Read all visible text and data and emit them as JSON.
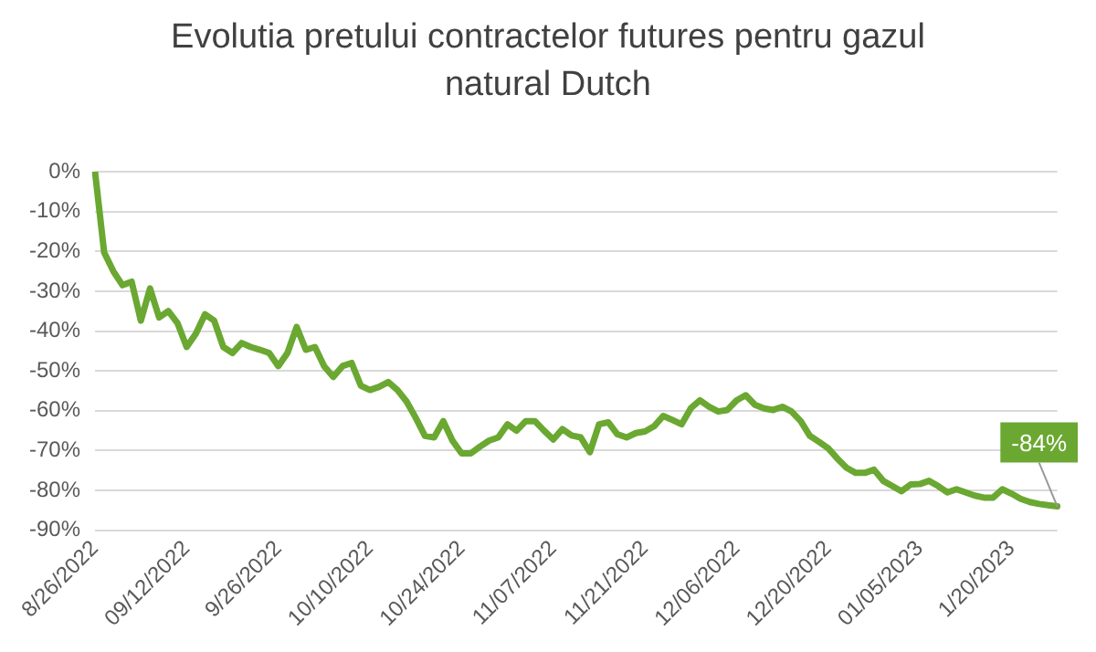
{
  "chart_data": {
    "type": "line",
    "title": "Evolutia pretului contractelor futures pentru gazul natural Dutch",
    "categories": [
      "8/26/2022",
      null,
      null,
      null,
      null,
      null,
      null,
      null,
      null,
      null,
      "09/12/2022",
      null,
      null,
      null,
      null,
      null,
      null,
      null,
      null,
      null,
      "9/26/2022",
      null,
      null,
      null,
      null,
      null,
      null,
      null,
      null,
      null,
      "10/10/2022",
      null,
      null,
      null,
      null,
      null,
      null,
      null,
      null,
      null,
      "10/24/2022",
      null,
      null,
      null,
      null,
      null,
      null,
      null,
      null,
      null,
      "11/07/2022",
      null,
      null,
      null,
      null,
      null,
      null,
      null,
      null,
      null,
      "11/21/2022",
      null,
      null,
      null,
      null,
      null,
      null,
      null,
      null,
      null,
      "12/06/2022",
      null,
      null,
      null,
      null,
      null,
      null,
      null,
      null,
      null,
      "12/20/2022",
      null,
      null,
      null,
      null,
      null,
      null,
      null,
      null,
      null,
      "01/05/2023",
      null,
      null,
      null,
      null,
      null,
      null,
      null,
      null,
      null,
      "1/20/2023",
      null,
      null,
      null,
      null,
      null
    ],
    "series": [
      {
        "color": "#6aa832",
        "values": [
          0,
          -20.3,
          -25,
          -28.5,
          -27.6,
          -37.4,
          -29.3,
          -36.6,
          -35,
          -38,
          -44,
          -40.7,
          -35.8,
          -37.4,
          -44,
          -45.5,
          -43,
          -44,
          -44.7,
          -45.5,
          -48.8,
          -45.5,
          -39,
          -44.7,
          -44,
          -48.8,
          -51.5,
          -48.8,
          -48,
          -53.7,
          -54.8,
          -54,
          -52.8,
          -54.8,
          -57.7,
          -61.8,
          -66.3,
          -66.7,
          -62.6,
          -67.5,
          -70.7,
          -70.7,
          -69,
          -67.5,
          -66.7,
          -63.4,
          -65,
          -62.6,
          -62.6,
          -65,
          -67.2,
          -64.6,
          -66.2,
          -66.7,
          -70.4,
          -63.4,
          -62.9,
          -65.9,
          -66.7,
          -65.6,
          -65.2,
          -63.9,
          -61.3,
          -62.3,
          -63.4,
          -59.4,
          -57.4,
          -59,
          -60.2,
          -59.8,
          -57.4,
          -56.1,
          -58.5,
          -59.4,
          -59.8,
          -59,
          -60.2,
          -62.6,
          -66.3,
          -67.8,
          -69.4,
          -72,
          -74.3,
          -75.6,
          -75.6,
          -74.8,
          -77.6,
          -78.9,
          -80.2,
          -78.5,
          -78.4,
          -77.6,
          -78.9,
          -80.5,
          -79.7,
          -80.5,
          -81.3,
          -81.8,
          -81.8,
          -79.7,
          -80.8,
          -82.1,
          -82.9,
          -83.4,
          -83.7,
          -84
        ],
        "value_labels": [
          null,
          null,
          null,
          null,
          null,
          null,
          null,
          null,
          null,
          null,
          null,
          null,
          null,
          null,
          null,
          null,
          null,
          null,
          null,
          null,
          null,
          null,
          null,
          null,
          null,
          null,
          null,
          null,
          null,
          null,
          null,
          null,
          null,
          null,
          null,
          null,
          null,
          null,
          null,
          null,
          null,
          null,
          null,
          null,
          null,
          null,
          null,
          null,
          null,
          null,
          null,
          null,
          null,
          null,
          null,
          null,
          null,
          null,
          null,
          null,
          null,
          null,
          null,
          null,
          null,
          null,
          null,
          null,
          null,
          null,
          null,
          null,
          null,
          null,
          null,
          null,
          null,
          null,
          null,
          null,
          null,
          null,
          null,
          null,
          null,
          null,
          null,
          null,
          null,
          null,
          null,
          null,
          null,
          null,
          null,
          null,
          null,
          null,
          null,
          null,
          null,
          null,
          null,
          null,
          null,
          "-84%"
        ]
      }
    ],
    "ylim": [
      -90,
      0
    ],
    "yticks": [
      {
        "value": -90,
        "label": "-90%"
      },
      {
        "value": -80,
        "label": "-80%"
      },
      {
        "value": -70,
        "label": "-70%"
      },
      {
        "value": -60,
        "label": "-60%"
      },
      {
        "value": -50,
        "label": "-50%"
      },
      {
        "value": -40,
        "label": "-40%"
      },
      {
        "value": -30,
        "label": "-30%"
      },
      {
        "value": -20,
        "label": "-20%"
      },
      {
        "value": -10,
        "label": "-10%"
      },
      {
        "value": 0,
        "label": "0%"
      }
    ],
    "grid": "y",
    "legend": false,
    "marker": "none",
    "line_style": "solid"
  }
}
